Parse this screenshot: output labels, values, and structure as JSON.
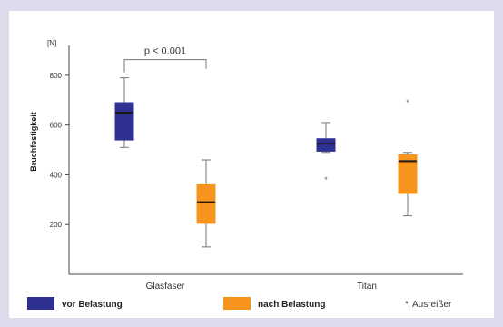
{
  "chart_data": {
    "type": "boxplot",
    "unit_label": "[N]",
    "ylabel": "Bruchfestigkeit",
    "ylim": [
      0,
      920
    ],
    "yticks": [
      200,
      400,
      600,
      800
    ],
    "categories": [
      "Glasfaser",
      "Titan"
    ],
    "series": [
      {
        "name": "vor Belastung",
        "color": "#2e3192",
        "boxes": [
          {
            "category": "Glasfaser",
            "min": 510,
            "q1": 540,
            "median": 650,
            "q3": 690,
            "max": 790,
            "outliers": []
          },
          {
            "category": "Titan",
            "min": 490,
            "q1": 495,
            "median": 525,
            "q3": 545,
            "max": 610,
            "outliers": [
              380
            ]
          }
        ]
      },
      {
        "name": "nach Belastung",
        "color": "#f7941d",
        "boxes": [
          {
            "category": "Glasfaser",
            "min": 110,
            "q1": 205,
            "median": 290,
            "q3": 360,
            "max": 460,
            "outliers": []
          },
          {
            "category": "Titan",
            "min": 235,
            "q1": 325,
            "median": 455,
            "q3": 480,
            "max": 490,
            "outliers": [
              690
            ]
          }
        ]
      }
    ],
    "annotations": [
      {
        "text": "p < 0.001",
        "between": [
          "Glasfaser: vor Belastung",
          "Glasfaser: nach Belastung"
        ]
      }
    ],
    "legend": {
      "placement": "bottom",
      "items": [
        "vor Belastung",
        "nach Belastung"
      ],
      "outlier_label": "Ausreißer"
    },
    "grid": false
  }
}
